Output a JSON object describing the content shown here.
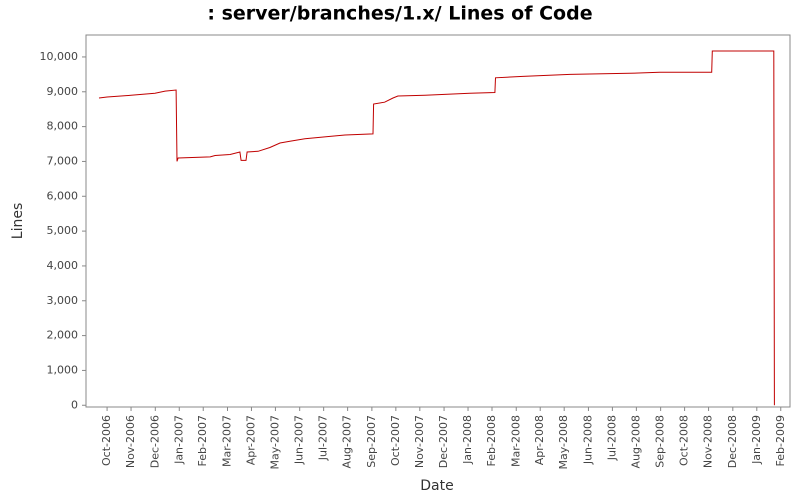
{
  "chart_data": {
    "type": "line",
    "title": ": server/branches/1.x/ Lines of Code",
    "x_label": "Date",
    "y_label": "Lines",
    "xlim": [
      2006.677,
      2009.115
    ],
    "ylim": [
      -50,
      10630
    ],
    "xticks": [
      {
        "value": 2006.75,
        "label": "Oct-2006"
      },
      {
        "value": 2006.833,
        "label": "Nov-2006"
      },
      {
        "value": 2006.917,
        "label": "Dec-2006"
      },
      {
        "value": 2007.0,
        "label": "Jan-2007"
      },
      {
        "value": 2007.083,
        "label": "Feb-2007"
      },
      {
        "value": 2007.167,
        "label": "Mar-2007"
      },
      {
        "value": 2007.25,
        "label": "Apr-2007"
      },
      {
        "value": 2007.333,
        "label": "May-2007"
      },
      {
        "value": 2007.417,
        "label": "Jun-2007"
      },
      {
        "value": 2007.5,
        "label": "Jul-2007"
      },
      {
        "value": 2007.583,
        "label": "Aug-2007"
      },
      {
        "value": 2007.667,
        "label": "Sep-2007"
      },
      {
        "value": 2007.75,
        "label": "Oct-2007"
      },
      {
        "value": 2007.833,
        "label": "Nov-2007"
      },
      {
        "value": 2007.917,
        "label": "Dec-2007"
      },
      {
        "value": 2008.0,
        "label": "Jan-2008"
      },
      {
        "value": 2008.083,
        "label": "Feb-2008"
      },
      {
        "value": 2008.167,
        "label": "Mar-2008"
      },
      {
        "value": 2008.25,
        "label": "Apr-2008"
      },
      {
        "value": 2008.333,
        "label": "May-2008"
      },
      {
        "value": 2008.417,
        "label": "Jun-2008"
      },
      {
        "value": 2008.5,
        "label": "Jul-2008"
      },
      {
        "value": 2008.583,
        "label": "Aug-2008"
      },
      {
        "value": 2008.667,
        "label": "Sep-2008"
      },
      {
        "value": 2008.75,
        "label": "Oct-2008"
      },
      {
        "value": 2008.833,
        "label": "Nov-2008"
      },
      {
        "value": 2008.917,
        "label": "Dec-2008"
      },
      {
        "value": 2009.0,
        "label": "Jan-2009"
      },
      {
        "value": 2009.083,
        "label": "Feb-2009"
      }
    ],
    "yticks": [
      0,
      {
        "value": 1000,
        "label": "1,000"
      },
      {
        "value": 2000,
        "label": "2,000"
      },
      {
        "value": 3000,
        "label": "3,000"
      },
      {
        "value": 4000,
        "label": "4,000"
      },
      {
        "value": 5000,
        "label": "5,000"
      },
      {
        "value": 6000,
        "label": "6,000"
      },
      {
        "value": 7000,
        "label": "7,000"
      },
      {
        "value": 8000,
        "label": "8,000"
      },
      {
        "value": 9000,
        "label": "9,000"
      },
      {
        "value": 10000,
        "label": "10,000"
      }
    ],
    "color": "#c00000",
    "x": [
      2006.722,
      2006.75,
      2006.833,
      2006.916,
      2006.951,
      2006.989,
      2006.992,
      2006.996,
      2007.107,
      2007.124,
      2007.176,
      2007.21,
      2007.214,
      2007.231,
      2007.235,
      2007.273,
      2007.314,
      2007.349,
      2007.383,
      2007.435,
      2007.522,
      2007.574,
      2007.671,
      2007.673,
      2007.711,
      2007.74,
      2007.757,
      2007.851,
      2008.006,
      2008.093,
      2008.095,
      2008.19,
      2008.353,
      2008.56,
      2008.664,
      2008.844,
      2008.846,
      2009.059,
      2009.061
    ],
    "values": [
      8820,
      8850,
      8900,
      8960,
      9020,
      9050,
      7000,
      7100,
      7130,
      7170,
      7200,
      7270,
      7030,
      7030,
      7270,
      7290,
      7400,
      7530,
      7580,
      7650,
      7720,
      7760,
      7790,
      8650,
      8700,
      8820,
      8880,
      8900,
      8960,
      8980,
      9400,
      9440,
      9500,
      9530,
      9560,
      9560,
      10170,
      10170,
      0
    ]
  }
}
